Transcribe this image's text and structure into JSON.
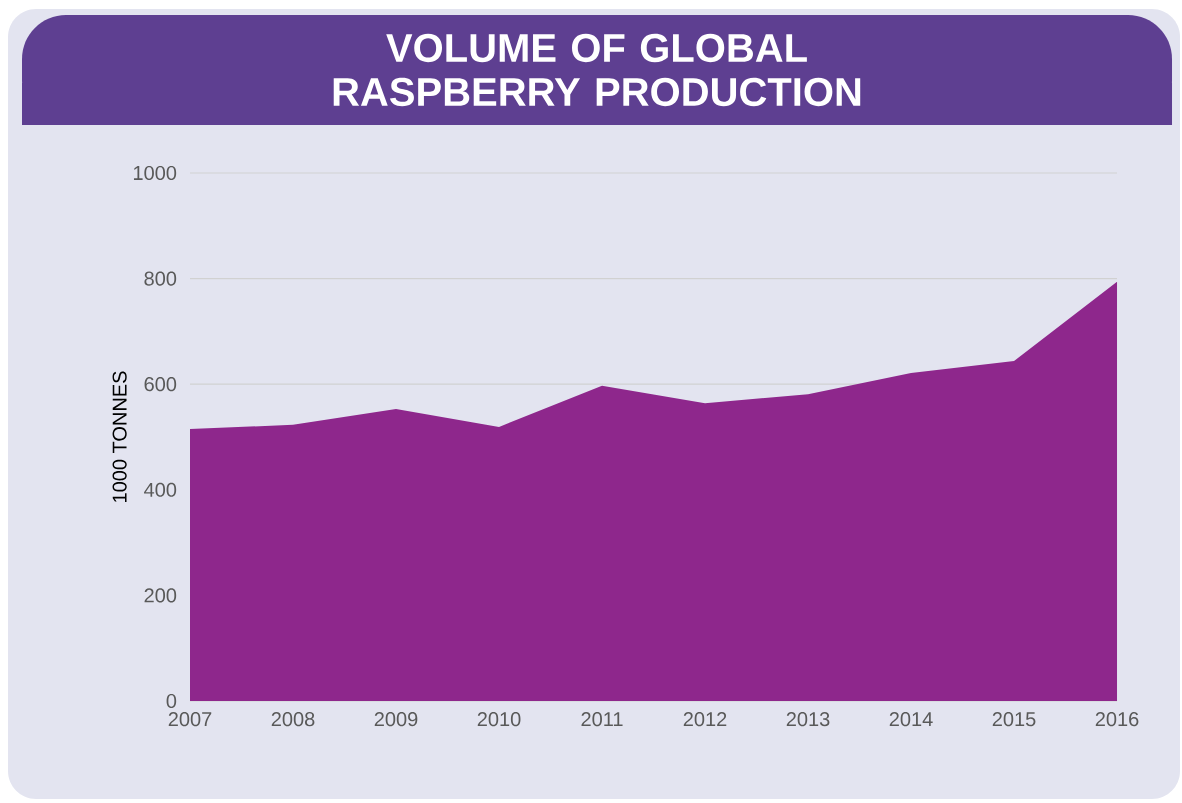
{
  "chart_data": {
    "type": "area",
    "title": "VOLUME OF GLOBAL RASPBERRY PRODUCTION",
    "ylabel": "1000 TONNES",
    "x": [
      2007,
      2008,
      2009,
      2010,
      2011,
      2012,
      2013,
      2014,
      2015,
      2016
    ],
    "series": [
      {
        "color": "#8e278c",
        "values": [
          515,
          523,
          553,
          519,
          597,
          564,
          581,
          621,
          644,
          794
        ]
      }
    ],
    "xlim": [
      2007,
      2016
    ],
    "xticks": [
      2007,
      2008,
      2009,
      2010,
      2011,
      2012,
      2013,
      2014,
      2015,
      2016
    ],
    "ylim": [
      0,
      1000
    ],
    "yticks": [
      0,
      200,
      400,
      600,
      800,
      1000
    ],
    "grid": "y"
  }
}
